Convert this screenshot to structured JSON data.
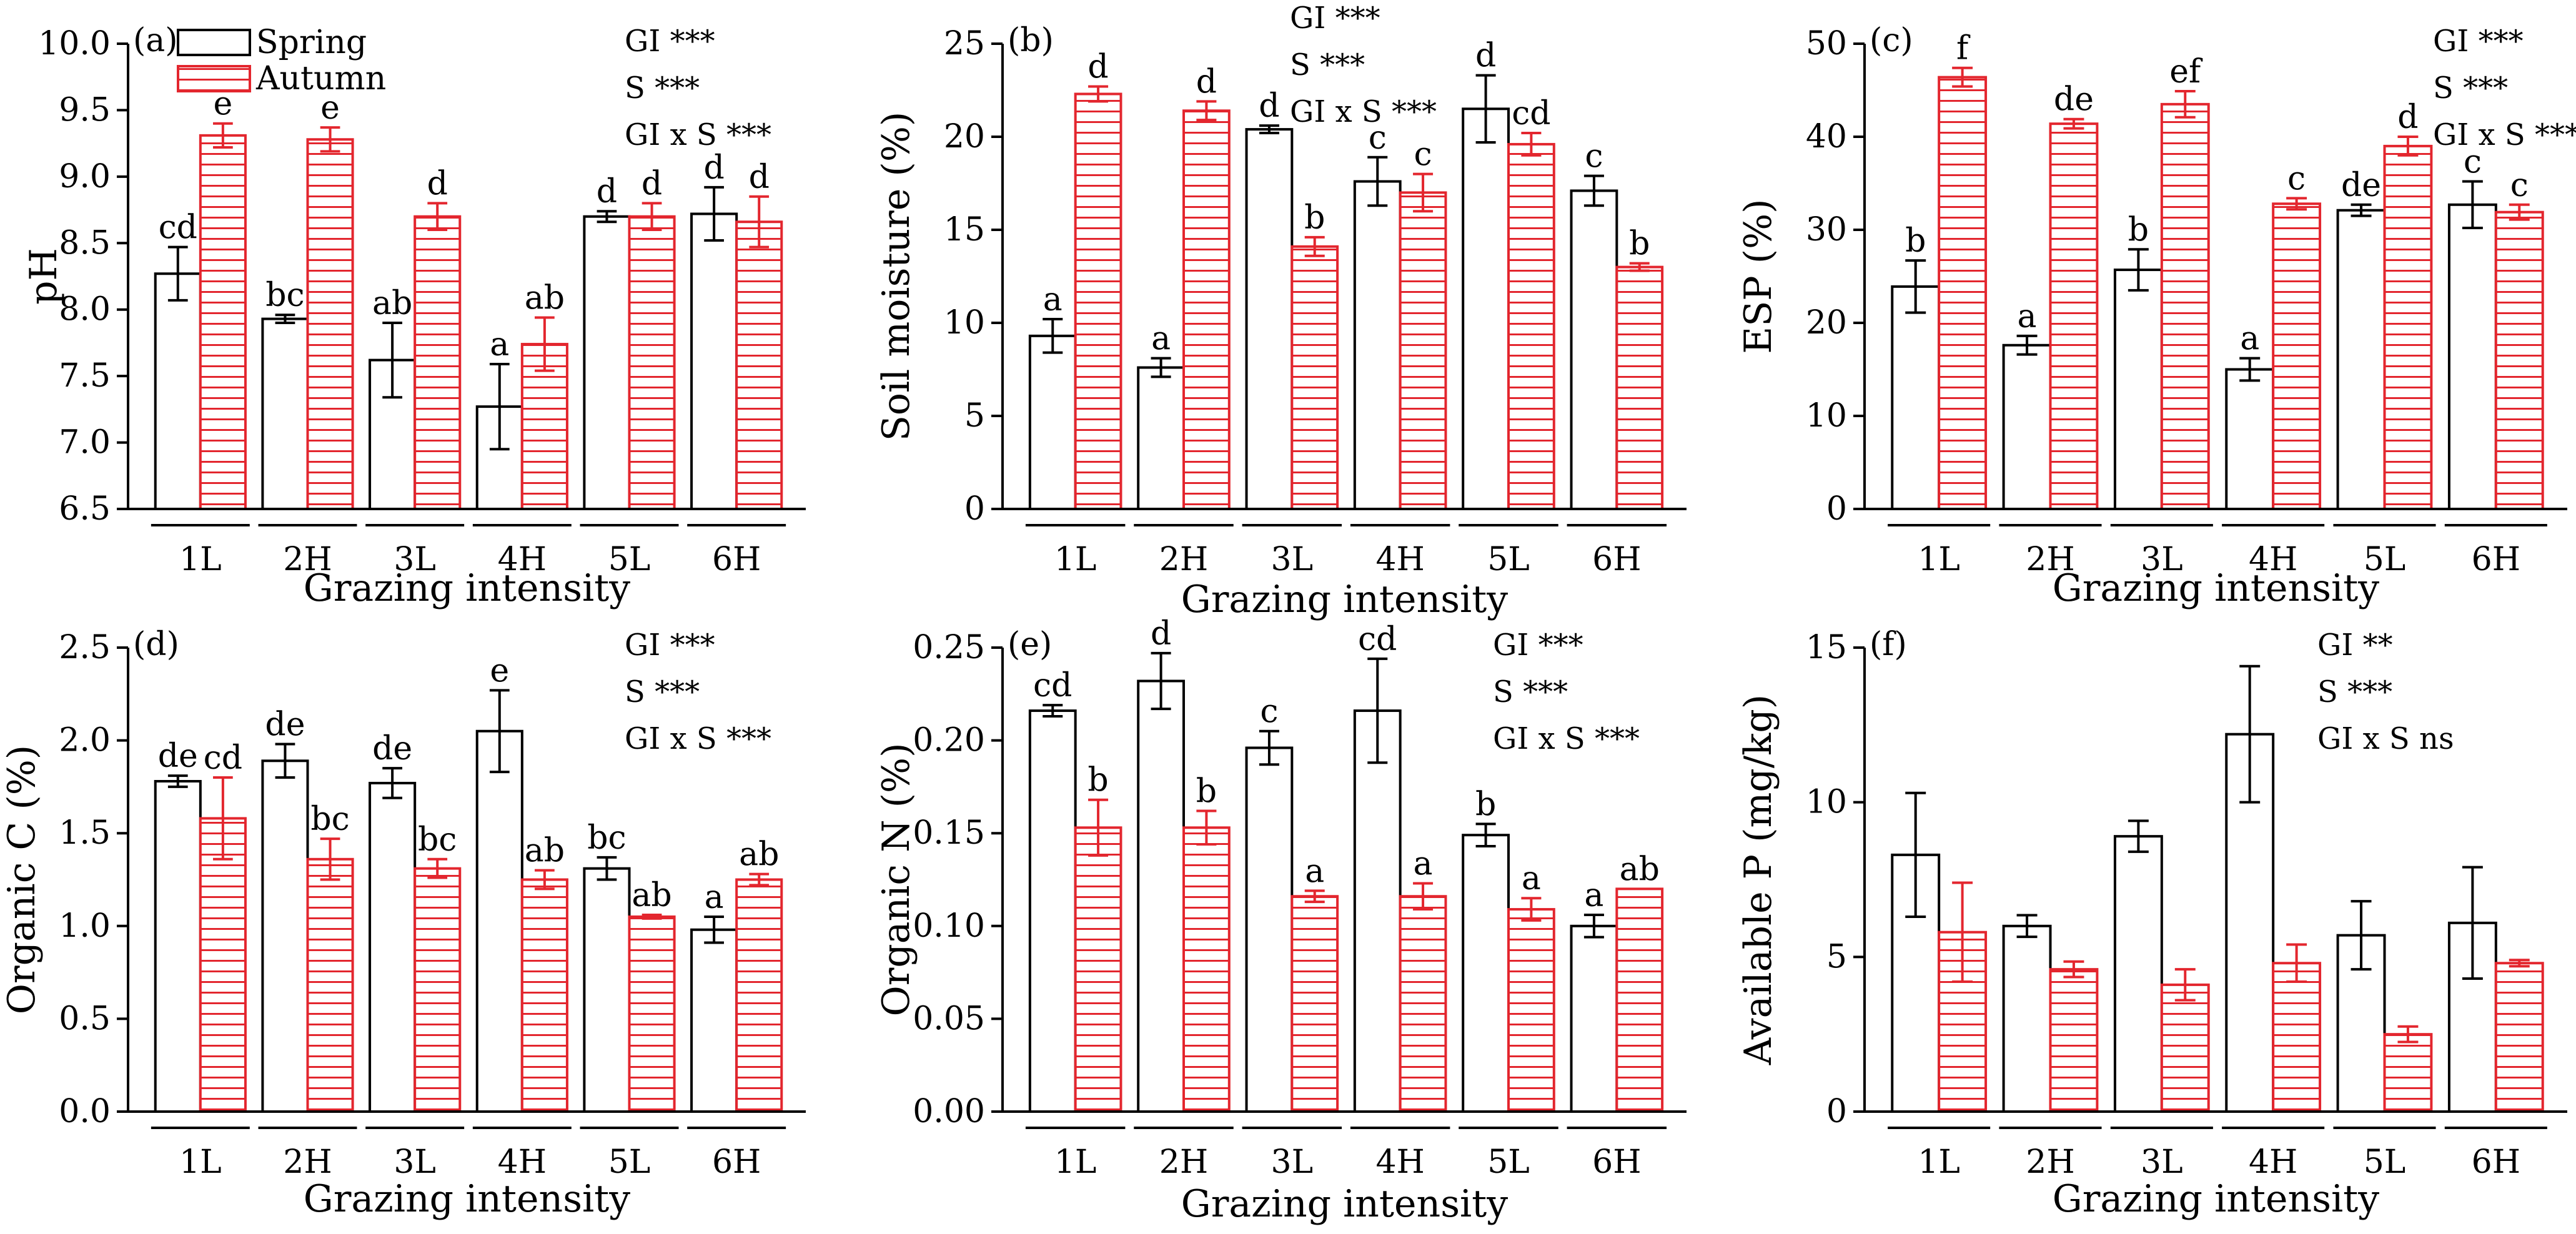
{
  "figure": {
    "legend": {
      "spring": "Spring",
      "autumn": "Autumn"
    },
    "colors": {
      "spring": "#000000",
      "autumn": "#e3262e"
    }
  },
  "chart_data": [
    {
      "panel": "(a)",
      "type": "bar",
      "title": "",
      "xlabel": "Grazing intensity",
      "ylabel": "pH",
      "ylim": [
        6.5,
        10.0
      ],
      "ticks": [
        "6.5",
        "7.0",
        "7.5",
        "8.0",
        "8.5",
        "9.0",
        "9.5",
        "10.0"
      ],
      "categories": [
        "1L",
        "2H",
        "3L",
        "4H",
        "5L",
        "6H"
      ],
      "series": [
        {
          "name": "Spring",
          "values": [
            8.27,
            7.93,
            7.62,
            7.27,
            8.7,
            8.72
          ],
          "errors": [
            0.2,
            0.03,
            0.28,
            0.32,
            0.04,
            0.2
          ],
          "letters": [
            "cd",
            "bc",
            "ab",
            "a",
            "d",
            "d"
          ]
        },
        {
          "name": "Autumn",
          "values": [
            9.31,
            9.28,
            8.7,
            7.74,
            8.7,
            8.66
          ],
          "errors": [
            0.09,
            0.09,
            0.1,
            0.2,
            0.1,
            0.19
          ],
          "letters": [
            "e",
            "e",
            "d",
            "ab",
            "d",
            "d"
          ]
        }
      ],
      "stats": [
        "GI ***",
        "S ***",
        "GI x S ***"
      ]
    },
    {
      "panel": "(b)",
      "type": "bar",
      "title": "",
      "xlabel": "Grazing intensity",
      "ylabel": "Soil moisture (%)",
      "ylim": [
        0,
        25
      ],
      "ticks": [
        "0",
        "5",
        "10",
        "15",
        "20",
        "25"
      ],
      "categories": [
        "1L",
        "2H",
        "3L",
        "4H",
        "5L",
        "6H"
      ],
      "series": [
        {
          "name": "Spring",
          "values": [
            9.3,
            7.6,
            20.4,
            17.6,
            21.5,
            17.1
          ],
          "errors": [
            0.9,
            0.5,
            0.2,
            1.3,
            1.8,
            0.8
          ],
          "letters": [
            "a",
            "a",
            "d",
            "c",
            "d",
            "c"
          ]
        },
        {
          "name": "Autumn",
          "values": [
            22.3,
            21.4,
            14.1,
            17.0,
            19.6,
            13.0
          ],
          "errors": [
            0.4,
            0.5,
            0.5,
            1.0,
            0.6,
            0.2
          ],
          "letters": [
            "d",
            "d",
            "b",
            "c",
            "cd",
            "b"
          ]
        }
      ],
      "stats": [
        "GI ***",
        "S ***",
        "GI x S ***"
      ]
    },
    {
      "panel": "(c)",
      "type": "bar",
      "title": "",
      "xlabel": "Grazing intensity",
      "ylabel": "ESP (%)",
      "ylim": [
        0,
        50
      ],
      "ticks": [
        "0",
        "10",
        "20",
        "30",
        "40",
        "50"
      ],
      "categories": [
        "1L",
        "2H",
        "3L",
        "4H",
        "5L",
        "6H"
      ],
      "series": [
        {
          "name": "Spring",
          "values": [
            23.9,
            17.6,
            25.7,
            15.0,
            32.1,
            32.7
          ],
          "errors": [
            2.8,
            1.0,
            2.2,
            1.2,
            0.6,
            2.5
          ],
          "letters": [
            "b",
            "a",
            "b",
            "a",
            "de",
            "c"
          ]
        },
        {
          "name": "Autumn",
          "values": [
            46.4,
            41.4,
            43.5,
            32.8,
            39.0,
            31.9
          ],
          "errors": [
            1.0,
            0.5,
            1.4,
            0.6,
            1.0,
            0.8
          ],
          "letters": [
            "f",
            "de",
            "ef",
            "c",
            "d",
            "c"
          ]
        }
      ],
      "stats": [
        "GI ***",
        "S ***",
        "GI x S ***"
      ]
    },
    {
      "panel": "(d)",
      "type": "bar",
      "title": "",
      "xlabel": "Grazing intensity",
      "ylabel": "Organic C (%)",
      "ylim": [
        0,
        2.5
      ],
      "ticks": [
        "0.0",
        "0.5",
        "1.0",
        "1.5",
        "2.0",
        "2.5"
      ],
      "categories": [
        "1L",
        "2H",
        "3L",
        "4H",
        "5L",
        "6H"
      ],
      "series": [
        {
          "name": "Spring",
          "values": [
            1.78,
            1.89,
            1.77,
            2.05,
            1.31,
            0.98
          ],
          "errors": [
            0.03,
            0.09,
            0.08,
            0.22,
            0.06,
            0.07
          ],
          "letters": [
            "de",
            "de",
            "de",
            "e",
            "bc",
            "a"
          ]
        },
        {
          "name": "Autumn",
          "values": [
            1.58,
            1.36,
            1.31,
            1.25,
            1.05,
            1.25
          ],
          "errors": [
            0.22,
            0.11,
            0.05,
            0.05,
            0.01,
            0.03
          ],
          "letters": [
            "cd",
            "bc",
            "bc",
            "ab",
            "ab",
            "ab"
          ]
        }
      ],
      "stats": [
        "GI ***",
        "S ***",
        "GI x S ***"
      ]
    },
    {
      "panel": "(e)",
      "type": "bar",
      "title": "",
      "xlabel": "Grazing intensity",
      "ylabel": "Organic N (%)",
      "ylim": [
        0,
        0.25
      ],
      "ticks": [
        "0.00",
        "0.05",
        "0.10",
        "0.15",
        "0.20",
        "0.25"
      ],
      "categories": [
        "1L",
        "2H",
        "3L",
        "4H",
        "5L",
        "6H"
      ],
      "series": [
        {
          "name": "Spring",
          "values": [
            0.216,
            0.232,
            0.196,
            0.216,
            0.149,
            0.1
          ],
          "errors": [
            0.003,
            0.015,
            0.009,
            0.028,
            0.006,
            0.006
          ],
          "letters": [
            "cd",
            "d",
            "c",
            "cd",
            "b",
            "a"
          ]
        },
        {
          "name": "Autumn",
          "values": [
            0.153,
            0.153,
            0.116,
            0.116,
            0.109,
            0.12
          ],
          "errors": [
            0.015,
            0.009,
            0.003,
            0.007,
            0.006,
            0.0
          ],
          "letters": [
            "b",
            "b",
            "a",
            "a",
            "a",
            "ab"
          ]
        }
      ],
      "stats": [
        "GI ***",
        "S ***",
        "GI x S ***"
      ]
    },
    {
      "panel": "(f)",
      "type": "bar",
      "title": "",
      "xlabel": "Grazing intensity",
      "ylabel": "Available P (mg/kg)",
      "ylim": [
        0,
        15
      ],
      "ticks": [
        "0",
        "5",
        "10",
        "15"
      ],
      "categories": [
        "1L",
        "2H",
        "3L",
        "4H",
        "5L",
        "6H"
      ],
      "series": [
        {
          "name": "Spring",
          "values": [
            8.3,
            6.0,
            8.9,
            12.2,
            5.7,
            6.1
          ],
          "errors": [
            2.0,
            0.35,
            0.5,
            2.2,
            1.1,
            1.8
          ],
          "letters": [
            "",
            "",
            "",
            "",
            "",
            ""
          ]
        },
        {
          "name": "Autumn",
          "values": [
            5.8,
            4.6,
            4.1,
            4.8,
            2.5,
            4.8
          ],
          "errors": [
            1.6,
            0.25,
            0.5,
            0.6,
            0.25,
            0.1
          ],
          "letters": [
            "",
            "",
            "",
            "",
            "",
            ""
          ]
        }
      ],
      "stats": [
        "GI **",
        "S ***",
        "GI x S ns"
      ]
    }
  ]
}
